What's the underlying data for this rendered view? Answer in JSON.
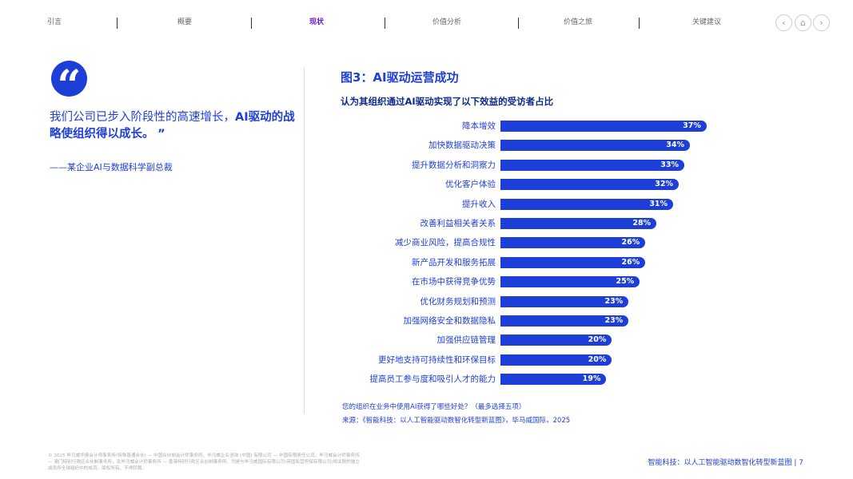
{
  "nav": {
    "items": [
      "引言",
      "概要",
      "现状",
      "价值分析",
      "价值之旅",
      "关键建议"
    ],
    "active_index": 2,
    "prev_icon": "chevron-left-icon",
    "home_icon": "home-icon",
    "next_icon": "chevron-right-icon"
  },
  "quote": {
    "icon": "quote-icon",
    "text_normal": "我们公司已步入阶段性的高速增长，",
    "text_bold": "AI驱动的战略使组织得以成长。",
    "close_mark": "”",
    "attribution": "——某企业AI与数据科学副总裁"
  },
  "chart_data": {
    "type": "bar",
    "orientation": "horizontal",
    "title": "图3：AI驱动运营成功",
    "subtitle": "认为其组织通过AI驱动实现了以下效益的受访者占比",
    "categories": [
      "降本增效",
      "加快数据驱动决策",
      "提升数据分析和洞察力",
      "优化客户体验",
      "提升收入",
      "改善利益相关者关系",
      "减少商业风险，提高合规性",
      "新产品开发和服务拓展",
      "在市场中获得竞争优势",
      "优化财务规划和预测",
      "加强网络安全和数据隐私",
      "加强供应链管理",
      "更好地支持可持续性和环保目标",
      "提高员工参与度和吸引人才的能力"
    ],
    "values": [
      37,
      34,
      33,
      32,
      31,
      28,
      26,
      26,
      25,
      23,
      23,
      20,
      20,
      19
    ],
    "unit": "%",
    "color": "#1e3ed8"
  },
  "note": "您的组织在业务中使用AI获得了哪些好处？（最多选择五项）",
  "source": "来源：《智能科技：以人工智能驱动数智化转型新蓝图》，毕马威国际，2025",
  "legal": "© 2025 毕马威华振会计师事务所(特殊普通合伙) — 中国合伙制会计师事务所，毕马威企业咨询 (中国) 有限公司 — 中国有限责任公司，毕马威会计师事务所 — 澳门特别行政区合伙制事务所，及毕马威会计师事务所 — 香港特别行政区合伙制事务所，均是与毕马威国际有限公司(英国私营担保有限公司)相关联的独立成员所全球组织中的成员。版权所有，不得转载。",
  "footer": {
    "doc_title": "智能科技：以人工智能驱动数智化转型新蓝图",
    "page": "7"
  }
}
